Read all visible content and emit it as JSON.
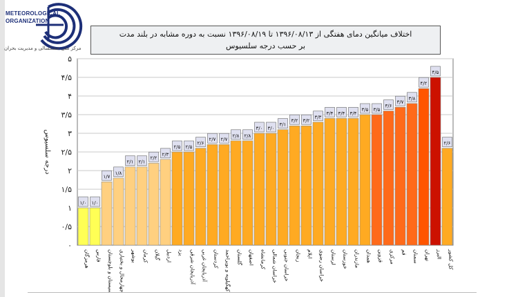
{
  "logo": {
    "org_line1": "METEOROLOGICAL",
    "org_line2": "ORGANIZATION",
    "center_name": "مرکز ملی خشکسالی و مدیریت بحران"
  },
  "chart_data": {
    "type": "bar",
    "title": "اختلاف میانگین دمای هفتگی از ۱۳۹۶/۰۸/۱۳ تا ۱۳۹۶/۰۸/۱۹ نسبت به دوره مشابه در بلند مدت",
    "subtitle": "بر حسب درجه سلسیوس",
    "ylabel": "درجه سلسیوس",
    "xlabel": "",
    "ylim": [
      0,
      5
    ],
    "yticks": [
      "۰",
      "۰/۵",
      "۱",
      "۱/۵",
      "۲",
      "۲/۵",
      "۳",
      "۳/۵",
      "۴",
      "۴/۵",
      "۵"
    ],
    "grid": true,
    "categories": [
      "هرمزگان",
      "فارس",
      "سیستان و بلوچستان",
      "چهارمحال و بختیاری",
      "بوشهر",
      "کرمان",
      "گیلان",
      "اردبیل",
      "یزد",
      "آذربایجان شرقی",
      "آذربایجان غربی",
      "کردستان",
      "کهگیلویه و بویراحمد",
      "گلستان",
      "اصفهان",
      "کرمانشاه",
      "خراسان شمالی",
      "خراسان جنوبی",
      "زنجان",
      "ایلام",
      "خراسان رضوی",
      "لرستان",
      "خوزستان",
      "مازندران",
      "همدان",
      "قزوین",
      "مرکزی",
      "قم",
      "سمنان",
      "تهران",
      "البرز",
      "کل کشور"
    ],
    "values": [
      1.0,
      1.0,
      1.7,
      1.8,
      2.1,
      2.1,
      2.2,
      2.3,
      2.5,
      2.5,
      2.6,
      2.7,
      2.7,
      2.8,
      2.8,
      3.0,
      3.0,
      3.1,
      3.2,
      3.2,
      3.3,
      3.4,
      3.4,
      3.4,
      3.5,
      3.5,
      3.6,
      3.7,
      3.8,
      4.2,
      4.5,
      2.6
    ],
    "value_labels": [
      "۱/۰",
      "۱/۰",
      "۱/۷",
      "۱/۸",
      "۲/۱",
      "۲/۱",
      "۲/۲",
      "۲/۳",
      "۲/۵",
      "۲/۵",
      "۲/۶",
      "۲/۷",
      "۲/۷",
      "۲/۸",
      "۲/۸",
      "۳/۰",
      "۳/۰",
      "۳/۱",
      "۳/۲",
      "۳/۲",
      "۳/۳",
      "۳/۴",
      "۳/۴",
      "۳/۴",
      "۳/۵",
      "۳/۵",
      "۳/۶",
      "۳/۷",
      "۳/۸",
      "۴/۲",
      "۴/۵",
      "۲/۶"
    ],
    "colors": [
      "#ffff55",
      "#ffff55",
      "#ffd080",
      "#ffd080",
      "#ffd080",
      "#ffd080",
      "#ffd080",
      "#ffd080",
      "#ffaa22",
      "#ffaa22",
      "#ffaa22",
      "#ffaa22",
      "#ffaa22",
      "#ffaa22",
      "#ffaa22",
      "#ffaa22",
      "#ffaa22",
      "#ffaa22",
      "#ffaa22",
      "#ffaa22",
      "#ffaa22",
      "#ffaa22",
      "#ffaa22",
      "#ffaa22",
      "#ffaa22",
      "#ff6a1a",
      "#ff6a1a",
      "#ff6a1a",
      "#ff6a1a",
      "#ff5500",
      "#cc1100",
      "#ffaa22"
    ]
  }
}
